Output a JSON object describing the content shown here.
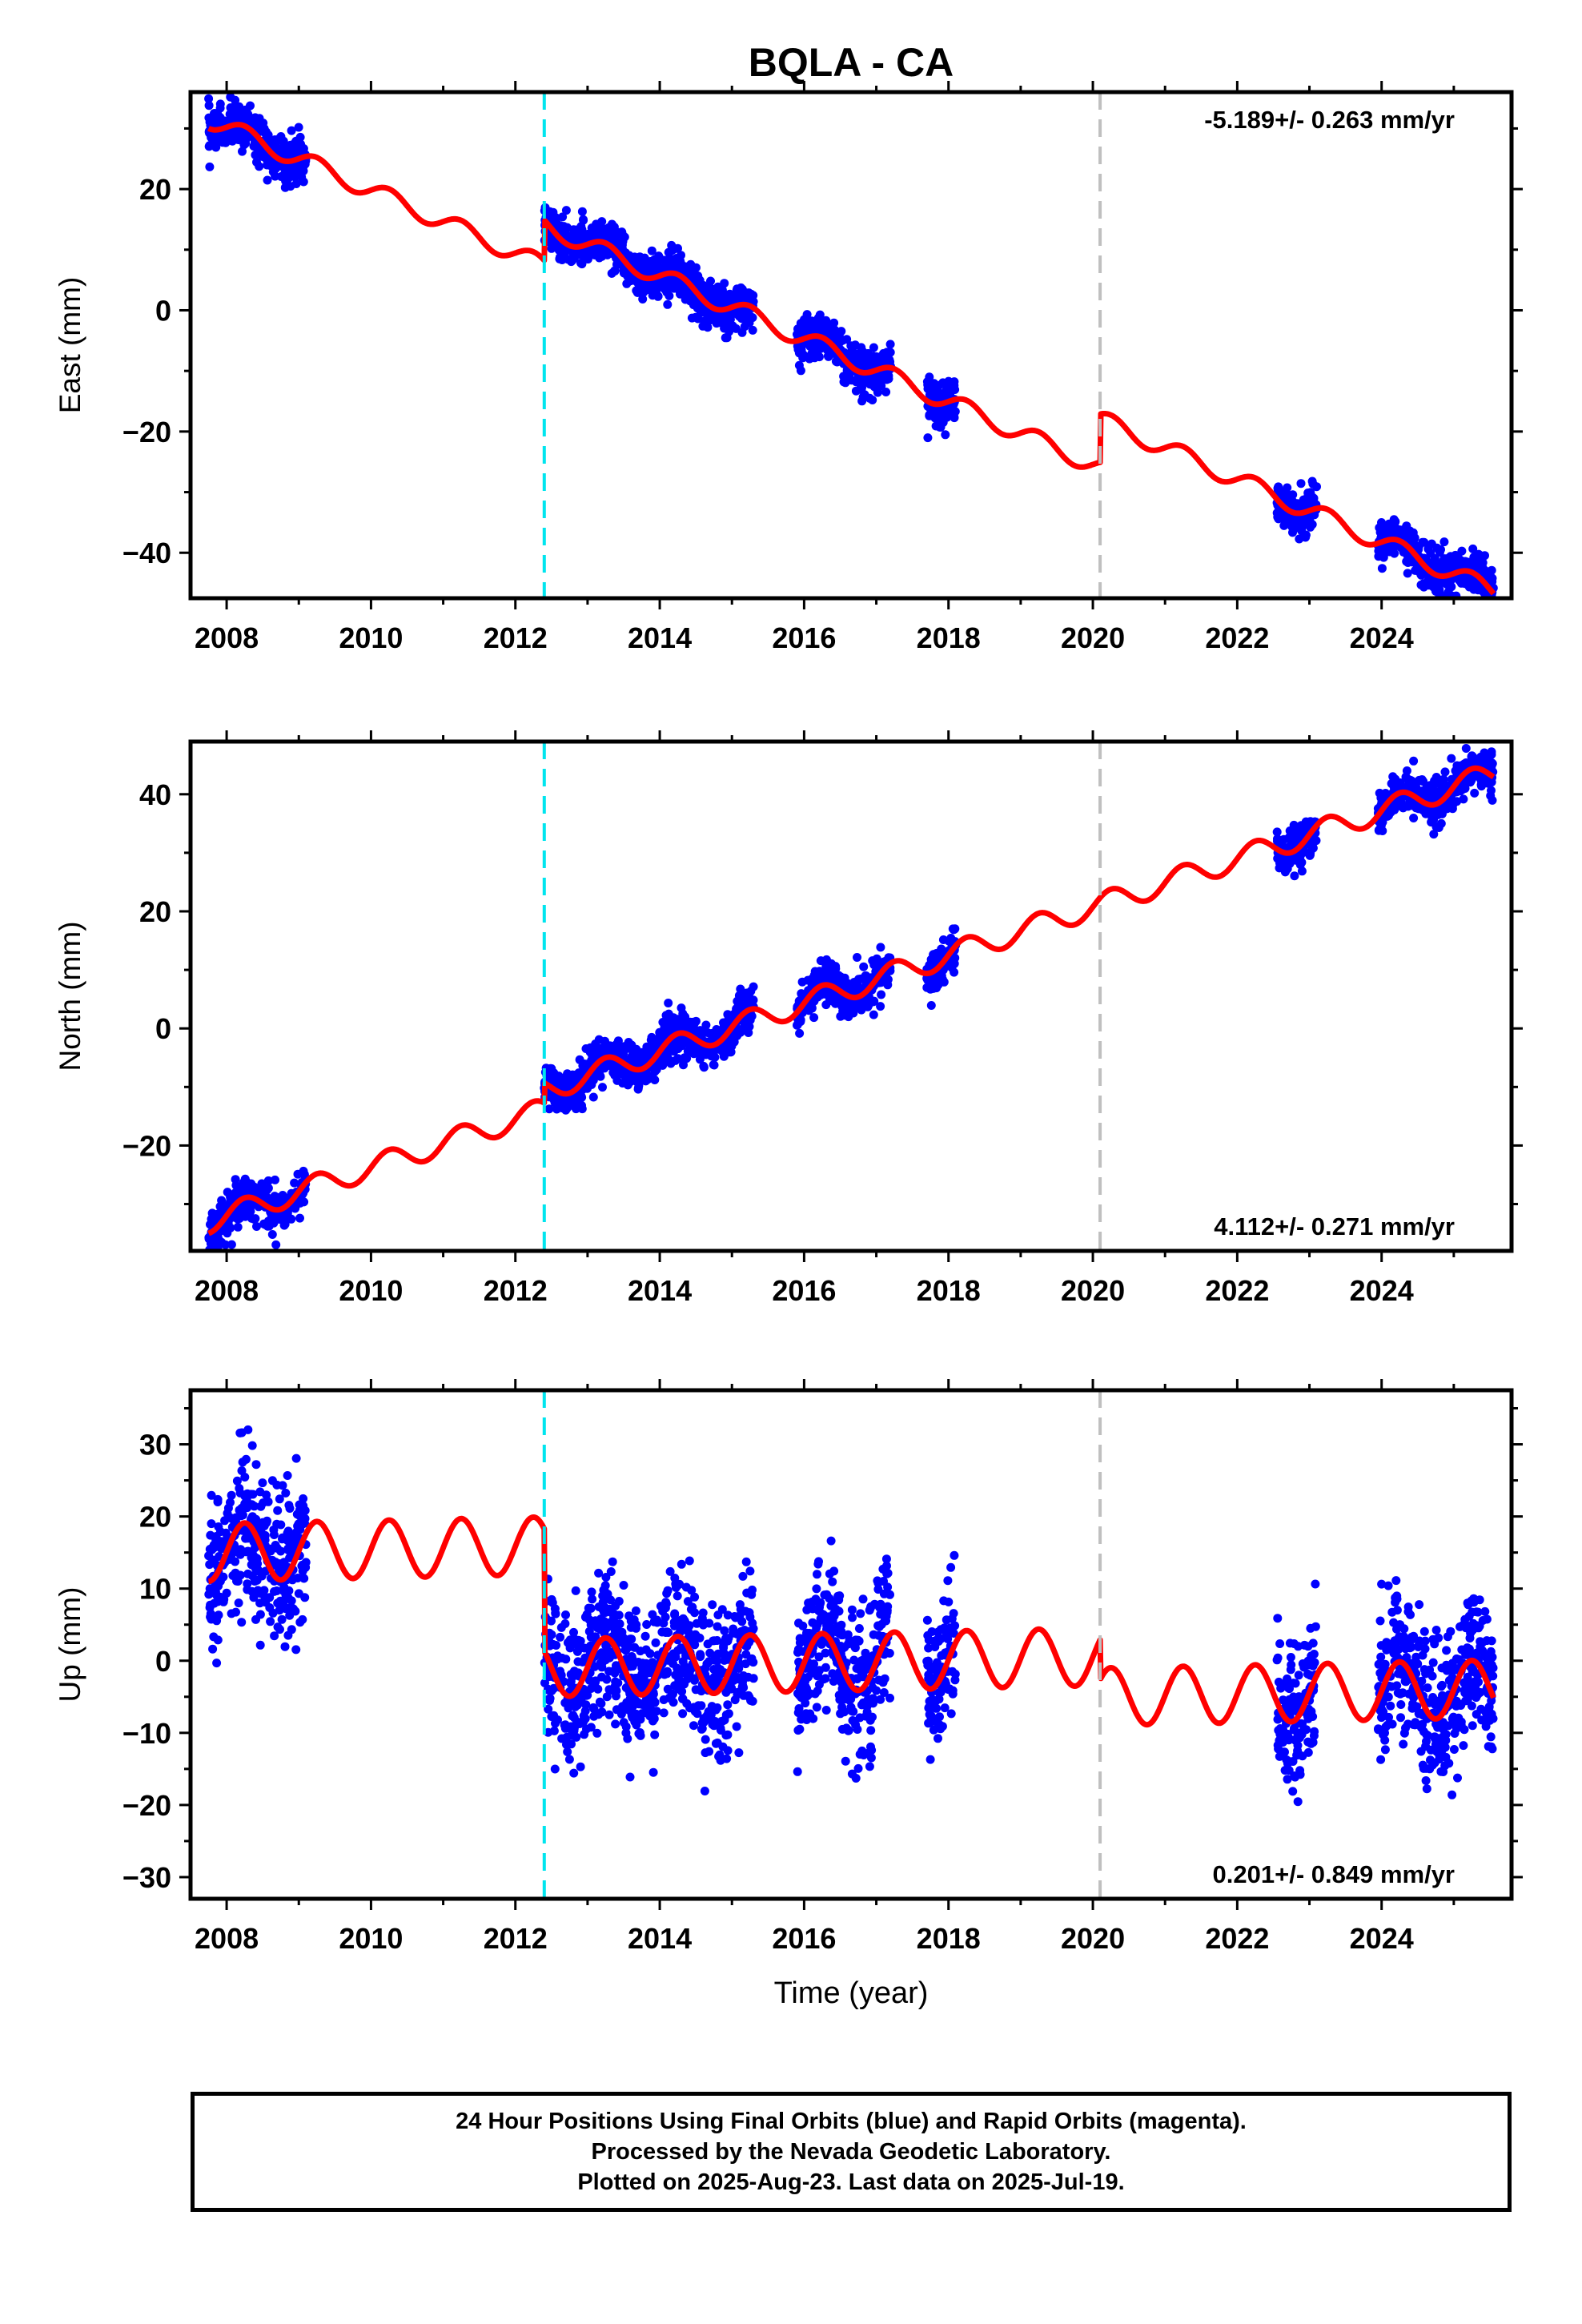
{
  "title": "BQLA - CA",
  "colors": {
    "data_points": "#0000ff",
    "model_line": "#ff0000",
    "cyan_break": "#00e5ee",
    "gray_break": "#bfbfbf",
    "frame": "#000000"
  },
  "footer": {
    "line1": "24 Hour Positions Using Final Orbits (blue) and Rapid Orbits (magenta).",
    "line2": "Processed by the Nevada Geodetic Laboratory.",
    "line3": "Plotted on 2025-Aug-23. Last data on 2025-Jul-19."
  },
  "chart_data": [
    {
      "type": "scatter",
      "ylabel": "East (mm)",
      "xlabel": "",
      "xlim": [
        2007.5,
        2025.8
      ],
      "ylim": [
        -47.5,
        36.0
      ],
      "x_ticks": [
        2008,
        2010,
        2012,
        2014,
        2016,
        2018,
        2020,
        2022,
        2024
      ],
      "y_ticks": [
        -40,
        -20,
        0,
        20
      ],
      "rate_label": "-5.189+/- 0.263 mm/yr",
      "rate_position": "top-right",
      "break_lines": [
        {
          "x": 2012.4,
          "style": "cyan-dashed"
        },
        {
          "x": 2020.1,
          "style": "gray-dashed"
        }
      ],
      "model": {
        "trend_rate": -5.189,
        "segments": [
          {
            "x_start": 2007.75,
            "x_end": 2012.4,
            "y_start": 31.5
          },
          {
            "x_start": 2012.4,
            "x_end": 2020.1,
            "y_start": 14.0
          },
          {
            "x_start": 2020.1,
            "x_end": 2025.55,
            "y_start": -18.0
          }
        ],
        "seasonal_amplitude": 1.5
      },
      "data_clusters": [
        {
          "x_start": 2007.75,
          "x_end": 2009.1,
          "scatter": 1.8
        },
        {
          "x_start": 2012.4,
          "x_end": 2015.3,
          "scatter": 1.8
        },
        {
          "x_start": 2015.9,
          "x_end": 2017.2,
          "scatter": 1.8
        },
        {
          "x_start": 2017.7,
          "x_end": 2018.1,
          "scatter": 1.8
        },
        {
          "x_start": 2022.55,
          "x_end": 2023.1,
          "scatter": 1.8
        },
        {
          "x_start": 2023.95,
          "x_end": 2025.55,
          "scatter": 1.8
        }
      ]
    },
    {
      "type": "scatter",
      "ylabel": "North (mm)",
      "xlabel": "",
      "xlim": [
        2007.5,
        2025.8
      ],
      "ylim": [
        -38.0,
        49.0
      ],
      "x_ticks": [
        2008,
        2010,
        2012,
        2014,
        2016,
        2018,
        2020,
        2022,
        2024
      ],
      "y_ticks": [
        -20,
        0,
        20,
        40
      ],
      "rate_label": "4.112+/- 0.271 mm/yr",
      "rate_position": "bottom-right",
      "break_lines": [
        {
          "x": 2012.4,
          "style": "cyan-dashed"
        },
        {
          "x": 2020.1,
          "style": "gray-dashed"
        }
      ],
      "model": {
        "trend_rate": 4.112,
        "segments": [
          {
            "x_start": 2007.75,
            "x_end": 2012.4,
            "y_start": -33.0
          },
          {
            "x_start": 2012.4,
            "x_end": 2025.55,
            "y_start": -10.5
          }
        ],
        "seasonal_amplitude": 2.0
      },
      "data_clusters": [
        {
          "x_start": 2007.75,
          "x_end": 2009.1,
          "scatter": 1.8
        },
        {
          "x_start": 2012.4,
          "x_end": 2015.3,
          "scatter": 1.8
        },
        {
          "x_start": 2015.9,
          "x_end": 2017.2,
          "scatter": 1.8
        },
        {
          "x_start": 2017.7,
          "x_end": 2018.1,
          "scatter": 1.8
        },
        {
          "x_start": 2022.55,
          "x_end": 2023.1,
          "scatter": 1.8
        },
        {
          "x_start": 2023.95,
          "x_end": 2025.55,
          "scatter": 1.8
        }
      ]
    },
    {
      "type": "scatter",
      "ylabel": "Up (mm)",
      "xlabel": "Time (year)",
      "xlim": [
        2007.5,
        2025.8
      ],
      "ylim": [
        -33.0,
        37.5
      ],
      "x_ticks": [
        2008,
        2010,
        2012,
        2014,
        2016,
        2018,
        2020,
        2022,
        2024
      ],
      "y_ticks": [
        -30,
        -20,
        -10,
        0,
        10,
        20,
        30
      ],
      "rate_label": "0.201+/- 0.849 mm/yr",
      "rate_position": "bottom-right",
      "break_lines": [
        {
          "x": 2012.4,
          "style": "cyan-dashed"
        },
        {
          "x": 2020.1,
          "style": "gray-dashed"
        }
      ],
      "model": {
        "trend_rate": 0.201,
        "segments": [
          {
            "x_start": 2007.75,
            "x_end": 2012.4,
            "y_start": 15.0
          },
          {
            "x_start": 2012.4,
            "x_end": 2020.1,
            "y_start": -1.0
          },
          {
            "x_start": 2020.1,
            "x_end": 2025.55,
            "y_start": -5.0
          }
        ],
        "seasonal_amplitude": 4.0
      },
      "data_clusters": [
        {
          "x_start": 2007.75,
          "x_end": 2009.1,
          "scatter": 5.0
        },
        {
          "x_start": 2012.4,
          "x_end": 2015.3,
          "scatter": 5.0
        },
        {
          "x_start": 2015.9,
          "x_end": 2017.2,
          "scatter": 5.0
        },
        {
          "x_start": 2017.7,
          "x_end": 2018.1,
          "scatter": 5.0
        },
        {
          "x_start": 2022.55,
          "x_end": 2023.1,
          "scatter": 5.0
        },
        {
          "x_start": 2023.95,
          "x_end": 2025.55,
          "scatter": 5.0
        }
      ]
    }
  ]
}
